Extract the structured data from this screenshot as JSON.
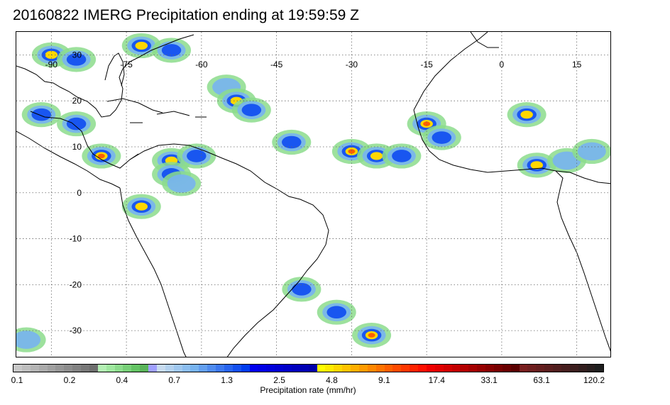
{
  "title": "20160822 IMERG Precipitation ending at 19:59:59 Z",
  "map": {
    "lon_range": [
      -97,
      22
    ],
    "lat_range": [
      -36,
      35
    ],
    "lon_ticks": [
      "-90",
      "-75",
      "-60",
      "-45",
      "-30",
      "-15",
      "0",
      "15"
    ],
    "lat_ticks": [
      "30",
      "20",
      "10",
      "0",
      "-10",
      "-20",
      "-30"
    ],
    "gridline_style": "dotted",
    "land_outline_color": "#000000"
  },
  "colorbar": {
    "title": "Precipitation rate (mm/hr)",
    "tick_labels": [
      "0.1",
      "0.2",
      "0.4",
      "0.7",
      "1.3",
      "2.5",
      "4.8",
      "9.1",
      "17.4",
      "33.1",
      "63.1",
      "120.2"
    ],
    "colors": [
      "#c8c8c8",
      "#bebebe",
      "#b4b4b4",
      "#aaaaaa",
      "#a0a0a0",
      "#969696",
      "#8c8c8c",
      "#828282",
      "#787878",
      "#6e6e6e",
      "#b4f0b4",
      "#a0e8a0",
      "#8cdc8c",
      "#78d078",
      "#64c464",
      "#5ab45a",
      "#a0a0ff",
      "#c8dcf0",
      "#b4d2f0",
      "#a0c8f0",
      "#8cbef0",
      "#78b4f0",
      "#64a0f0",
      "#508cf0",
      "#3c78f0",
      "#2864f0",
      "#1450f0",
      "#003cf0",
      "#0000f0",
      "#0000e6",
      "#0000dc",
      "#0000d2",
      "#0000c8",
      "#0000be",
      "#0000b4",
      "#0000aa",
      "#ffff00",
      "#ffeb00",
      "#ffd700",
      "#ffc300",
      "#ffaf00",
      "#ff9b00",
      "#ff8700",
      "#ff7300",
      "#ff5f00",
      "#ff4b00",
      "#ff3700",
      "#ff2300",
      "#ff0f00",
      "#f00000",
      "#e10000",
      "#d20000",
      "#c30000",
      "#b40000",
      "#a50000",
      "#960000",
      "#870000",
      "#780000",
      "#690000",
      "#5a0000",
      "#781e1e",
      "#6e1e1e",
      "#641e1e",
      "#5a1e1e",
      "#501e1e",
      "#461e1e",
      "#3c1e1e",
      "#321e1e",
      "#281e1e",
      "#1e1e1e"
    ]
  },
  "precip_clusters": [
    {
      "lon": -90,
      "lat": 30,
      "intensity": 3
    },
    {
      "lon": -85,
      "lat": 29,
      "intensity": 2
    },
    {
      "lon": -72,
      "lat": 32,
      "intensity": 3
    },
    {
      "lon": -66,
      "lat": 31,
      "intensity": 2
    },
    {
      "lon": -55,
      "lat": 23,
      "intensity": 1
    },
    {
      "lon": -53,
      "lat": 20,
      "intensity": 3
    },
    {
      "lon": -50,
      "lat": 18,
      "intensity": 2
    },
    {
      "lon": -42,
      "lat": 11,
      "intensity": 2
    },
    {
      "lon": -30,
      "lat": 9,
      "intensity": 4
    },
    {
      "lon": -25,
      "lat": 8,
      "intensity": 3
    },
    {
      "lon": -20,
      "lat": 8,
      "intensity": 2
    },
    {
      "lon": -15,
      "lat": 15,
      "intensity": 4
    },
    {
      "lon": -12,
      "lat": 12,
      "intensity": 2
    },
    {
      "lon": 5,
      "lat": 17,
      "intensity": 3
    },
    {
      "lon": 7,
      "lat": 6,
      "intensity": 3
    },
    {
      "lon": 13,
      "lat": 7,
      "intensity": 1
    },
    {
      "lon": 18,
      "lat": 9,
      "intensity": 1
    },
    {
      "lon": -92,
      "lat": 17,
      "intensity": 2
    },
    {
      "lon": -85,
      "lat": 15,
      "intensity": 2
    },
    {
      "lon": -80,
      "lat": 8,
      "intensity": 4
    },
    {
      "lon": -66,
      "lat": 7,
      "intensity": 3
    },
    {
      "lon": -61,
      "lat": 8,
      "intensity": 2
    },
    {
      "lon": -66,
      "lat": 4,
      "intensity": 2
    },
    {
      "lon": -72,
      "lat": -3,
      "intensity": 3
    },
    {
      "lon": -64,
      "lat": 2,
      "intensity": 1
    },
    {
      "lon": -40,
      "lat": -21,
      "intensity": 2
    },
    {
      "lon": -33,
      "lat": -26,
      "intensity": 2
    },
    {
      "lon": -26,
      "lat": -31,
      "intensity": 4
    },
    {
      "lon": -95,
      "lat": -32,
      "intensity": 1
    }
  ]
}
